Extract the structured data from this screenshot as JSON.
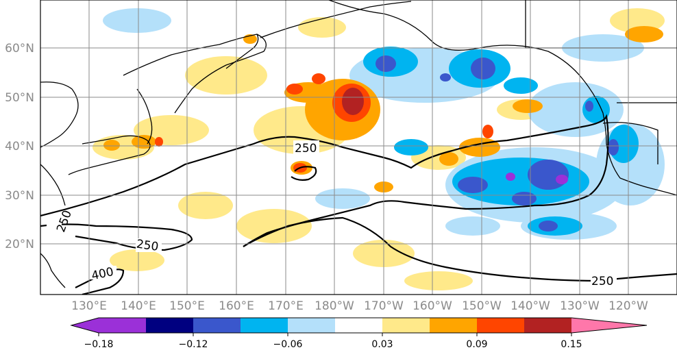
{
  "map": {
    "lat_labels": [
      "60°N",
      "50°N",
      "40°N",
      "30°N",
      "20°N"
    ],
    "lon_labels": [
      "130°E",
      "140°E",
      "150°E",
      "160°E",
      "170°E",
      "180°W",
      "170°W",
      "160°W",
      "150°W",
      "140°W",
      "130°W",
      "120°W"
    ],
    "contour_labels": [
      "250",
      "250",
      "250",
      "250",
      "400"
    ]
  },
  "colorbar": {
    "colors": [
      "#9b30d8",
      "#000080",
      "#3a57cc",
      "#00b4f0",
      "#b4e0fa",
      "#ffffff",
      "#ffe98a",
      "#ffa500",
      "#ff4500",
      "#b22222",
      "#ff77aa"
    ],
    "tick_labels": [
      "−0.18",
      "−0.12",
      "−0.06",
      "0.03",
      "0.09",
      "0.15"
    ]
  }
}
